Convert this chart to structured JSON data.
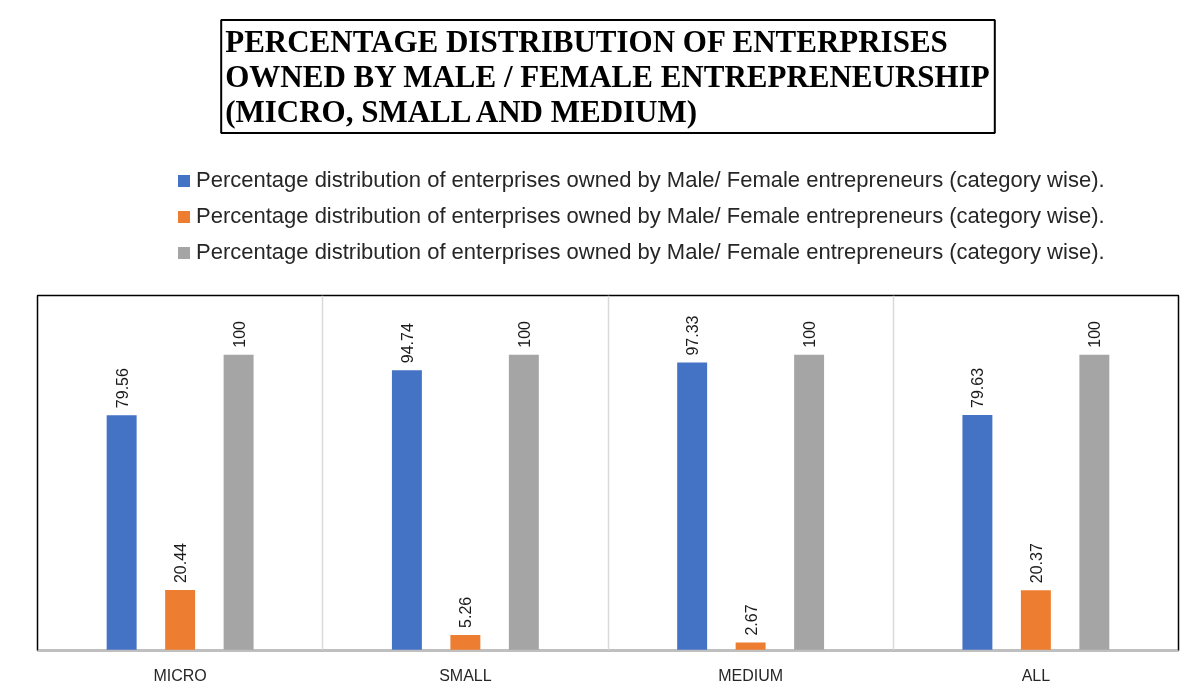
{
  "chart_data": {
    "type": "bar",
    "title": "PERCENTAGE DISTRIBUTION OF ENTERPRISES OWNED BY MALE / FEMALE ENTREPRENEURSHIP (MICRO, SMALL AND MEDIUM)",
    "categories": [
      "MICRO",
      "SMALL",
      "MEDIUM",
      "ALL"
    ],
    "series": [
      {
        "name": "Percentage distribution of enterprises owned by Male/ Female entrepreneurs (category wise).",
        "color": "#4472c4",
        "values": [
          79.56,
          94.74,
          97.33,
          79.63
        ]
      },
      {
        "name": "Percentage distribution of enterprises owned by Male/ Female entrepreneurs (category wise).",
        "color": "#ed7d31",
        "values": [
          20.44,
          5.26,
          2.67,
          20.37
        ]
      },
      {
        "name": "Percentage distribution of enterprises owned by Male/ Female entrepreneurs (category wise).",
        "color": "#a5a5a5",
        "values": [
          100,
          100,
          100,
          100
        ]
      }
    ],
    "ylim": [
      0,
      120
    ],
    "tick_labels": "x",
    "grid": "x",
    "legend": "top",
    "data_labels": true
  }
}
